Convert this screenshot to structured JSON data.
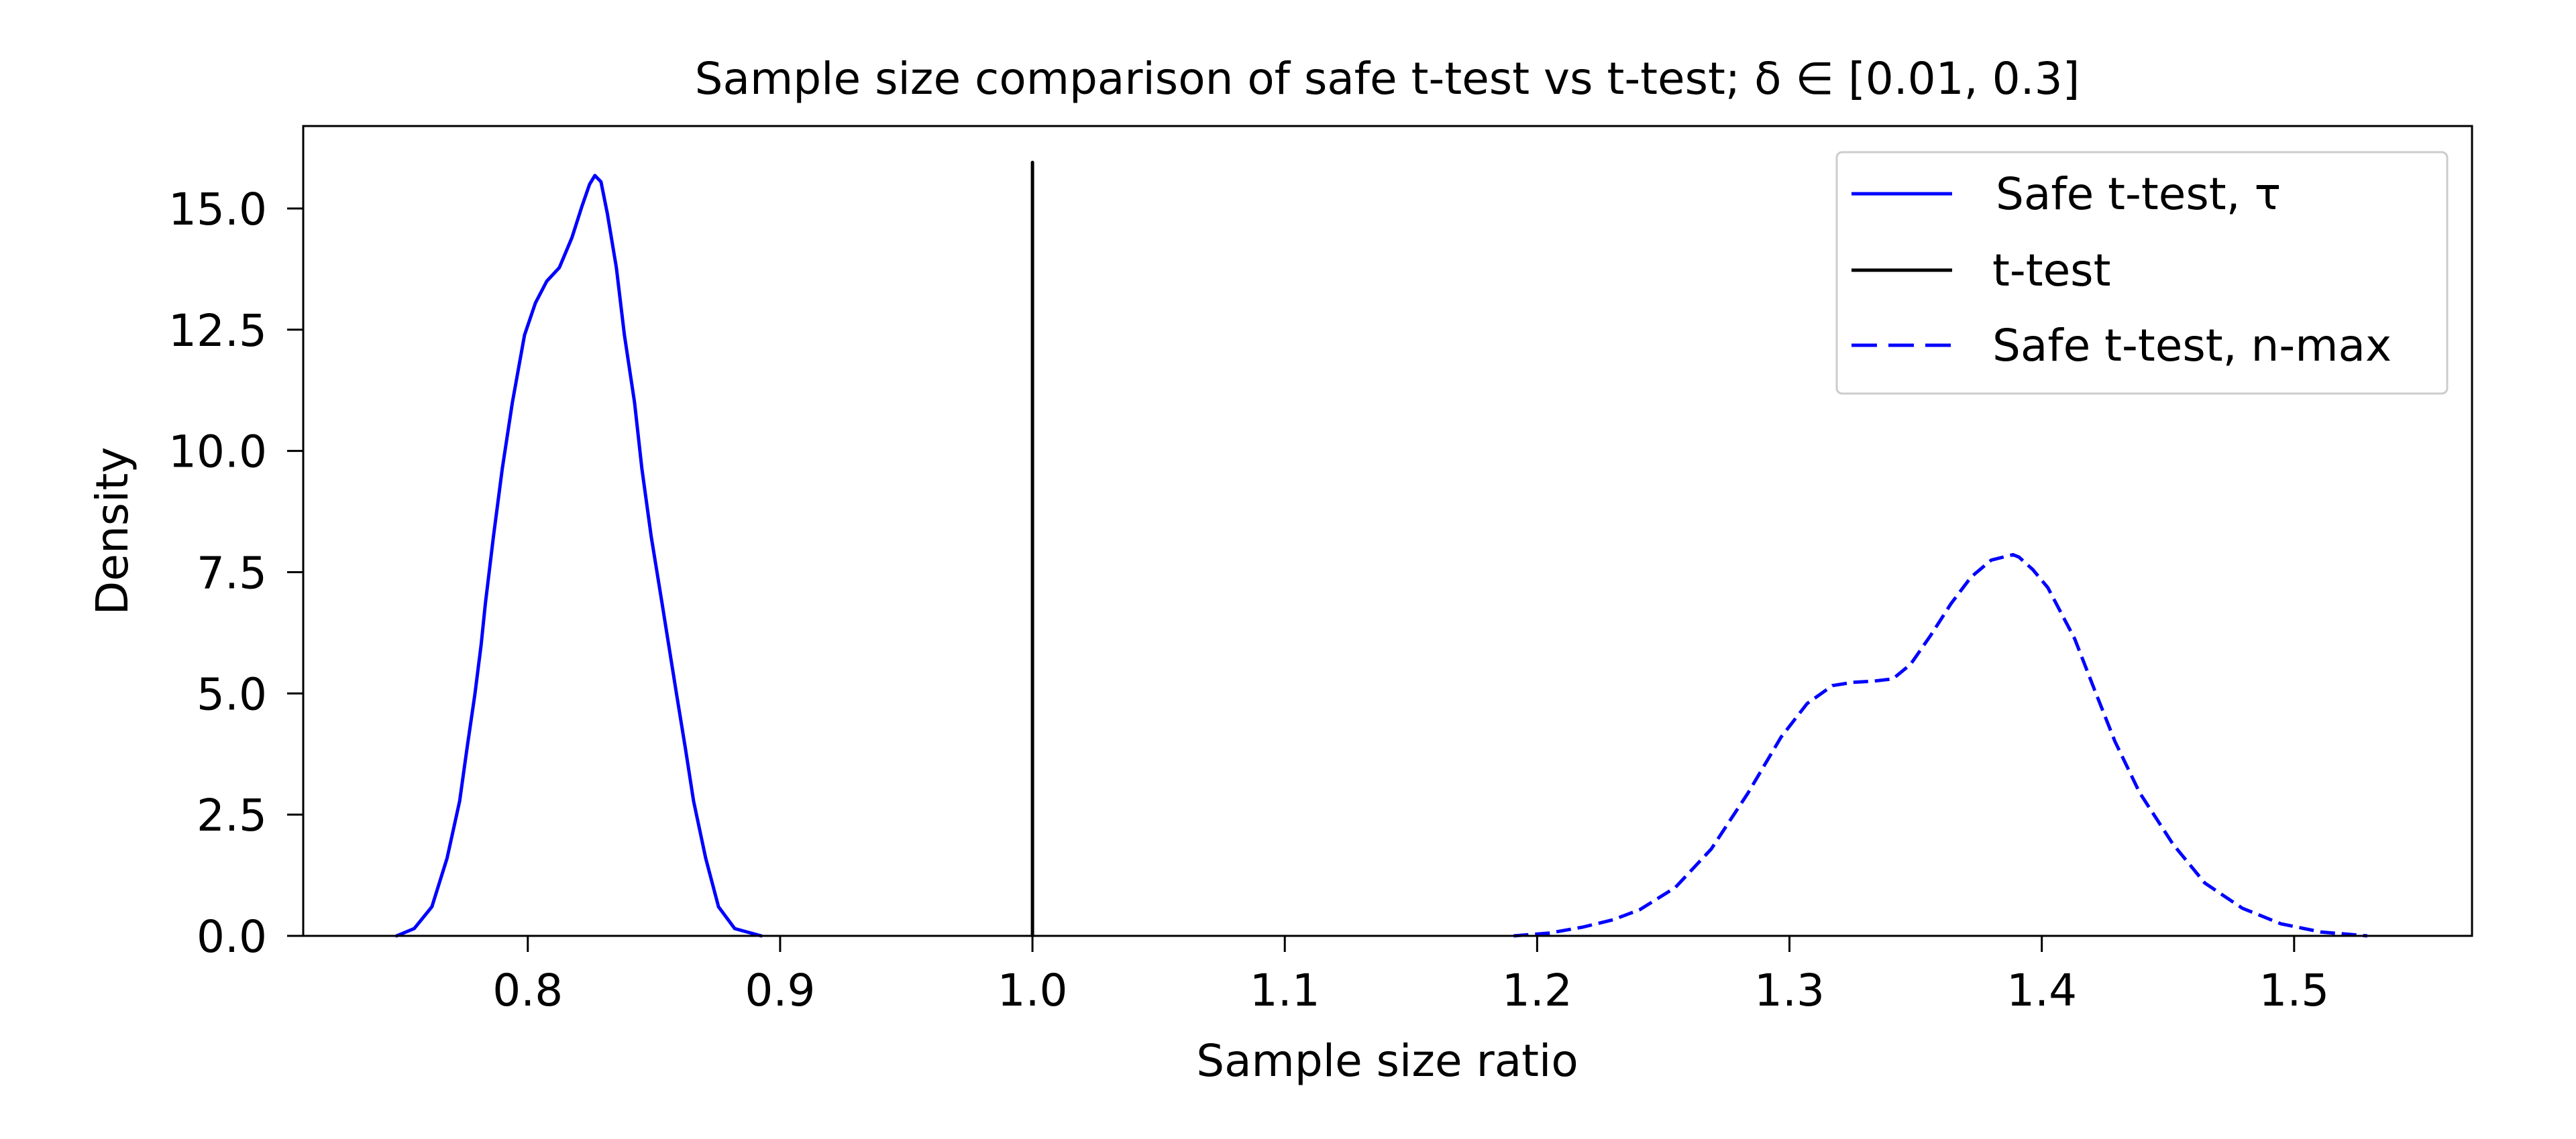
{
  "chart_data": {
    "type": "line",
    "title": "Sample size comparison of safe t-test vs t-test; δ ∈ [0.01, 0.3]",
    "xlabel": "Sample size ratio",
    "ylabel": "Density",
    "xlim": [
      0.711,
      1.5705
    ],
    "ylim": [
      0.0,
      16.7
    ],
    "grid": false,
    "legend_position": "upper right",
    "x_ticks": [
      0.8,
      0.9,
      1.0,
      1.1,
      1.2,
      1.3,
      1.4,
      1.5
    ],
    "x_tick_labels": [
      "0.8",
      "0.9",
      "1.0",
      "1.1",
      "1.2",
      "1.3",
      "1.4",
      "1.5"
    ],
    "y_ticks": [
      0.0,
      2.5,
      5.0,
      7.5,
      10.0,
      12.5,
      15.0
    ],
    "y_tick_labels": [
      "0.0",
      "2.5",
      "5.0",
      "7.5",
      "10.0",
      "12.5",
      "15.0"
    ],
    "series": [
      {
        "name": "Safe t-test, τ",
        "style": "solid",
        "color": "#0000ff",
        "x": [
          0.748,
          0.755,
          0.762,
          0.768,
          0.773,
          0.776,
          0.779,
          0.7815,
          0.7832,
          0.7864,
          0.7899,
          0.7939,
          0.7987,
          0.803,
          0.8075,
          0.8125,
          0.8175,
          0.8215,
          0.8245,
          0.8266,
          0.829,
          0.8315,
          0.8351,
          0.8383,
          0.8423,
          0.8452,
          0.8489,
          0.8532,
          0.859,
          0.8625,
          0.8657,
          0.8705,
          0.8756,
          0.882,
          0.8925
        ],
        "y": [
          0.0,
          0.15,
          0.6,
          1.6,
          2.78,
          3.9,
          4.97,
          6.0,
          6.86,
          8.24,
          9.64,
          11.0,
          12.39,
          13.05,
          13.5,
          13.78,
          14.4,
          15.05,
          15.5,
          15.68,
          15.55,
          14.9,
          13.78,
          12.39,
          11.0,
          9.64,
          8.24,
          6.86,
          4.97,
          3.85,
          2.78,
          1.6,
          0.6,
          0.15,
          0.0
        ]
      },
      {
        "name": "t-test",
        "style": "solid",
        "color": "#000000",
        "x": [
          1.0,
          1.0
        ],
        "y": [
          0.0,
          15.95
        ]
      },
      {
        "name": "Safe t-test, n-max",
        "style": "dashed",
        "color": "#0000ff",
        "x": [
          1.1907,
          1.205,
          1.218,
          1.23,
          1.2407,
          1.2548,
          1.269,
          1.2835,
          1.2967,
          1.307,
          1.317,
          1.3253,
          1.333,
          1.341,
          1.348,
          1.356,
          1.364,
          1.372,
          1.38,
          1.3886,
          1.391,
          1.3965,
          1.4024,
          1.413,
          1.421,
          1.429,
          1.4388,
          1.452,
          1.4646,
          1.4795,
          1.4947,
          1.5106,
          1.529
        ],
        "y": [
          0.0,
          0.06,
          0.18,
          0.33,
          0.54,
          1.0,
          1.79,
          2.94,
          4.1,
          4.79,
          5.16,
          5.23,
          5.25,
          5.3,
          5.6,
          6.2,
          6.85,
          7.4,
          7.75,
          7.86,
          7.81,
          7.55,
          7.18,
          6.13,
          5.06,
          4.01,
          2.95,
          1.89,
          1.09,
          0.57,
          0.25,
          0.08,
          0.0
        ]
      }
    ]
  },
  "legend": {
    "items": [
      {
        "label": "Safe t-test, τ",
        "color": "#0000ff",
        "style": "solid"
      },
      {
        "label": "t-test",
        "color": "#000000",
        "style": "solid"
      },
      {
        "label": "Safe t-test, n-max",
        "color": "#0000ff",
        "style": "dashed"
      }
    ]
  }
}
